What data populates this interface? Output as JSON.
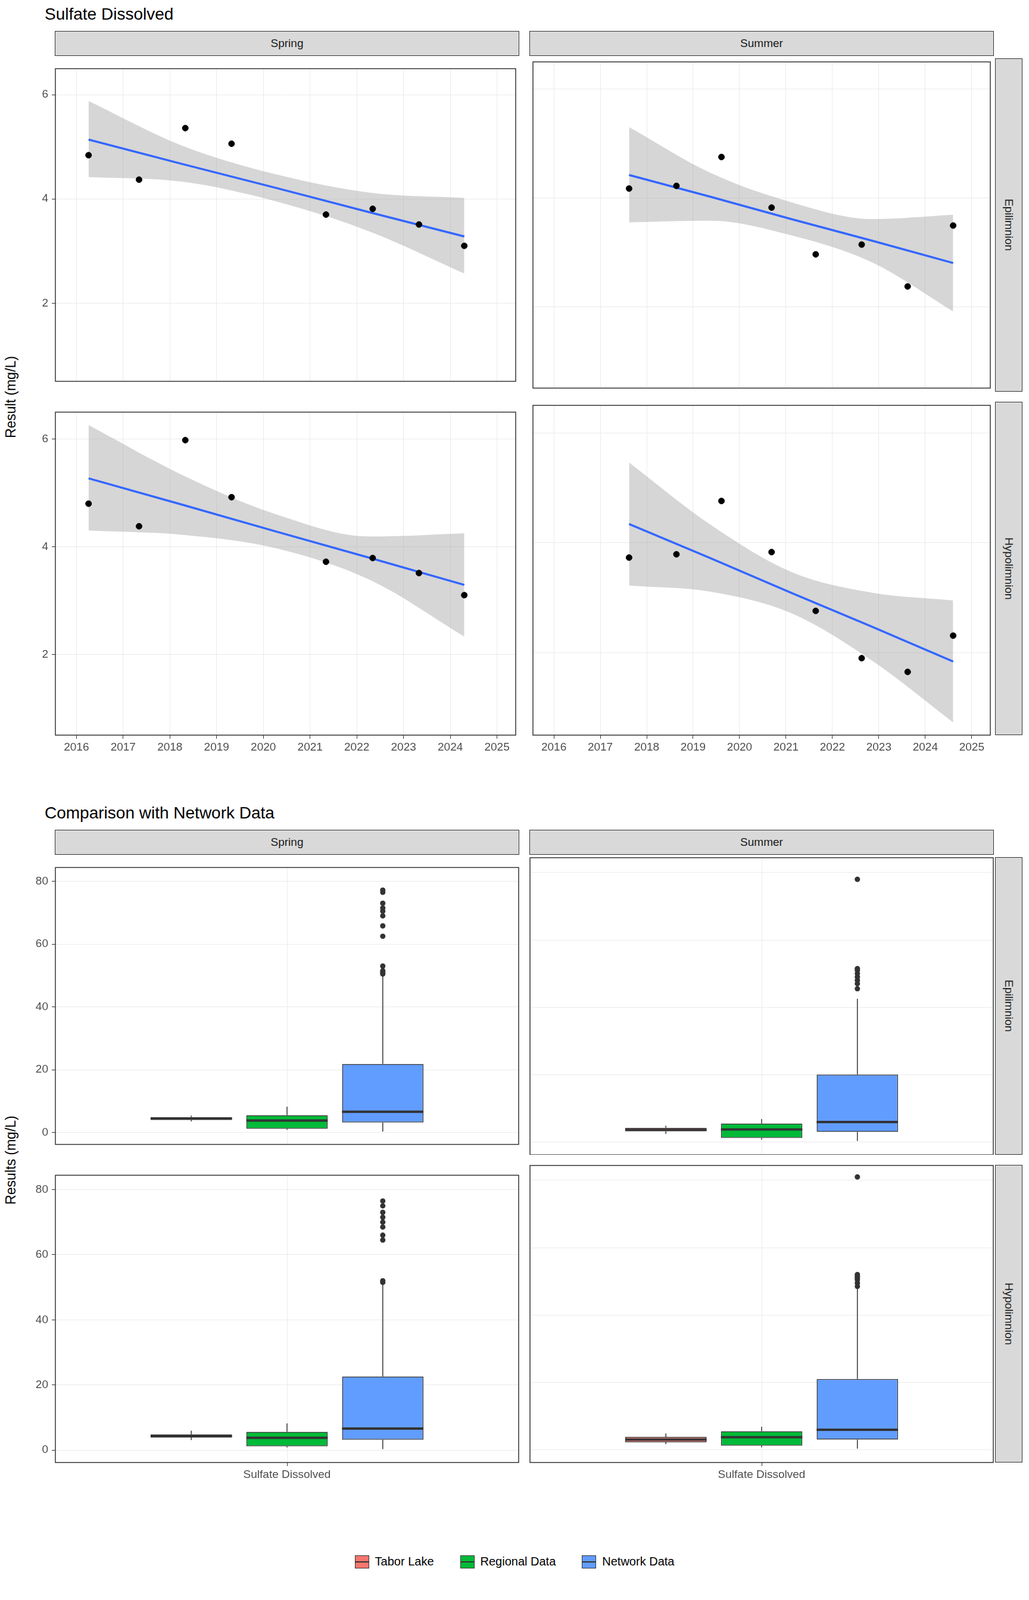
{
  "chart_data": [
    {
      "type": "scatter",
      "title": "Sulfate Dissolved",
      "ylabel": "Result (mg/L)",
      "columns": [
        "Spring",
        "Summer"
      ],
      "rows": [
        "Epilimnion",
        "Hypolimnion"
      ],
      "xlim": [
        2015.55,
        2025.4
      ],
      "xticks": [
        2016,
        2017,
        2018,
        2019,
        2020,
        2021,
        2022,
        2023,
        2024,
        2025
      ],
      "ylim": [
        0.5,
        6.5
      ],
      "yticks": [
        2,
        4,
        6
      ],
      "grid": true,
      "color": "#000000",
      "panels": [
        {
          "column": "Spring",
          "row": "Epilimnion",
          "x": [
            2016.26,
            2017.34,
            2018.33,
            2019.32,
            2021.34,
            2022.34,
            2023.33,
            2024.3
          ],
          "values": [
            4.84,
            4.37,
            5.36,
            5.06,
            3.7,
            3.81,
            3.51,
            3.1
          ],
          "fit": {
            "color": "#3366FF",
            "x": [
              2016.26,
              2018.27,
              2020.28,
              2022.29,
              2024.3
            ],
            "values": [
              5.14,
              4.67,
              4.21,
              3.74,
              3.28
            ],
            "lower": [
              4.42,
              4.33,
              3.95,
              3.37,
              2.57
            ],
            "upper": [
              5.88,
              5.02,
              4.47,
              4.12,
              4.02
            ]
          }
        },
        {
          "column": "Summer",
          "row": "Epilimnion",
          "x": [
            2017.62,
            2018.64,
            2019.61,
            2020.69,
            2021.64,
            2022.63,
            2023.62,
            2024.6
          ],
          "values": [
            4.17,
            4.22,
            4.75,
            3.82,
            2.96,
            3.14,
            2.37,
            3.49
          ],
          "fit": {
            "color": "#3366FF",
            "x": [
              2017.62,
              2019.37,
              2021.11,
              2022.86,
              2024.6
            ],
            "values": [
              4.42,
              4.02,
              3.61,
              3.21,
              2.8
            ],
            "lower": [
              3.55,
              3.58,
              3.31,
              2.81,
              1.91
            ],
            "upper": [
              5.3,
              4.46,
              3.92,
              3.61,
              3.69
            ]
          }
        },
        {
          "column": "Spring",
          "row": "Hypolimnion",
          "x": [
            2016.26,
            2017.34,
            2018.33,
            2019.32,
            2021.34,
            2022.34,
            2023.33,
            2024.3
          ],
          "values": [
            4.8,
            4.38,
            5.98,
            4.92,
            3.72,
            3.79,
            3.51,
            3.1
          ],
          "fit": {
            "color": "#3366FF",
            "x": [
              2016.26,
              2018.27,
              2020.28,
              2022.29,
              2024.3
            ],
            "values": [
              5.27,
              4.78,
              4.28,
              3.79,
              3.29
            ],
            "lower": [
              4.3,
              4.22,
              3.97,
              3.38,
              2.33
            ],
            "upper": [
              6.26,
              5.33,
              4.6,
              4.19,
              4.25
            ]
          }
        },
        {
          "column": "Summer",
          "row": "Hypolimnion",
          "x": [
            2017.62,
            2018.64,
            2019.61,
            2020.69,
            2021.64,
            2022.63,
            2023.62,
            2024.6
          ],
          "values": [
            3.73,
            3.79,
            4.76,
            3.83,
            2.76,
            1.9,
            1.65,
            2.31
          ],
          "fit": {
            "color": "#3366FF",
            "x": [
              2017.62,
              2019.37,
              2021.11,
              2022.86,
              2024.6
            ],
            "values": [
              4.34,
              3.72,
              3.09,
              2.47,
              1.84
            ],
            "lower": [
              3.22,
              3.11,
              2.72,
              1.85,
              0.73
            ],
            "upper": [
              5.46,
              4.33,
              3.47,
              3.09,
              2.95
            ]
          }
        }
      ]
    },
    {
      "type": "box",
      "title": "Comparison with Network Data",
      "ylabel": "Results (mg/L)",
      "columns": [
        "Spring",
        "Summer"
      ],
      "rows": [
        "Epilimnion",
        "Hypolimnion"
      ],
      "categories": [
        "Sulfate Dissolved"
      ],
      "ylim": [
        -3.8,
        84.4
      ],
      "yticks": [
        0,
        20,
        40,
        60,
        80
      ],
      "grid": true,
      "legend": "bottom",
      "series": [
        {
          "name": "Tabor Lake",
          "color": "#F8766D"
        },
        {
          "name": "Regional Data",
          "color": "#00BA38"
        },
        {
          "name": "Network Data",
          "color": "#619CFF"
        }
      ],
      "panels": [
        {
          "column": "Spring",
          "row": "Epilimnion",
          "boxes": [
            {
              "min": 3.5,
              "q1": 4.0,
              "median": 4.4,
              "q3": 4.9,
              "max": 5.35,
              "outliers": []
            },
            {
              "min": 0.8,
              "q1": 1.2,
              "median": 3.8,
              "q3": 5.5,
              "max": 8.2,
              "outliers": []
            },
            {
              "min": 0.3,
              "q1": 3.2,
              "median": 6.6,
              "q3": 21.8,
              "max": 50,
              "outliers": [
                50.5,
                51,
                51.5,
                53,
                62.5,
                65.8,
                69,
                70.5,
                71.5,
                73,
                76.5,
                77.2
              ]
            }
          ]
        },
        {
          "column": "Summer",
          "row": "Epilimnion",
          "boxes": [
            {
              "min": 2.4,
              "q1": 3.2,
              "median": 3.6,
              "q3": 4.2,
              "max": 4.8,
              "outliers": []
            },
            {
              "min": 0.7,
              "q1": 1.2,
              "median": 3.7,
              "q3": 5.5,
              "max": 6.8,
              "outliers": []
            },
            {
              "min": 0.3,
              "q1": 3.0,
              "median": 5.9,
              "q3": 20.0,
              "max": 42.5,
              "outliers": [
                45.5,
                47,
                48,
                49,
                50,
                51,
                51.5,
                78
              ]
            }
          ]
        },
        {
          "column": "Spring",
          "row": "Hypolimnion",
          "boxes": [
            {
              "min": 3.1,
              "q1": 3.9,
              "median": 4.25,
              "q3": 4.85,
              "max": 6.0,
              "outliers": []
            },
            {
              "min": 0.8,
              "q1": 1.2,
              "median": 3.8,
              "q3": 5.6,
              "max": 8.2,
              "outliers": []
            },
            {
              "min": 0.3,
              "q1": 3.2,
              "median": 6.6,
              "q3": 22.6,
              "max": 51,
              "outliers": [
                51.5,
                52,
                64.5,
                66,
                68.5,
                70,
                71.5,
                73,
                75,
                76.5
              ]
            }
          ]
        },
        {
          "column": "Summer",
          "row": "Hypolimnion",
          "boxes": [
            {
              "min": 1.65,
              "q1": 2.2,
              "median": 3.0,
              "q3": 3.8,
              "max": 4.8,
              "outliers": []
            },
            {
              "min": 0.7,
              "q1": 1.2,
              "median": 3.7,
              "q3": 5.5,
              "max": 6.8,
              "outliers": []
            },
            {
              "min": 0.3,
              "q1": 3.0,
              "median": 5.9,
              "q3": 21.0,
              "max": 48,
              "outliers": [
                48.5,
                49.5,
                50.5,
                51,
                51.5,
                52,
                81
              ]
            }
          ]
        }
      ]
    }
  ]
}
